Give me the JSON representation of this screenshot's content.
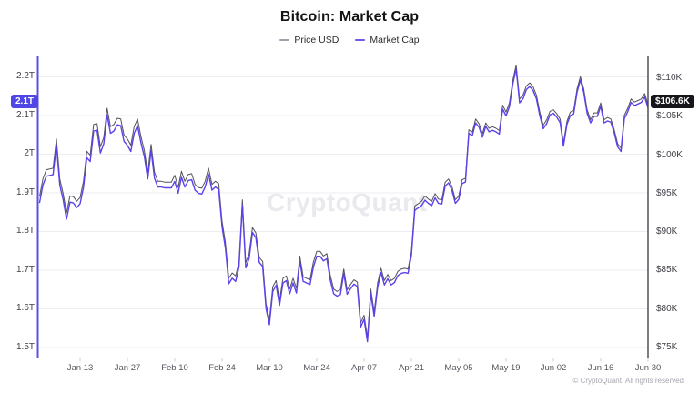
{
  "title": "Bitcoin: Market Cap",
  "legend": {
    "items": [
      {
        "label": "Price USD",
        "color": "#9ca3af"
      },
      {
        "label": "Market Cap",
        "color": "#6d5be8"
      }
    ]
  },
  "watermark": "CryptoQuant",
  "footer": "© CryptoQuant. All rights reserved",
  "axes": {
    "left": {
      "tick_labels": [
        "2.2T",
        "2.1T",
        "2T",
        "1.9T",
        "1.8T",
        "1.7T",
        "1.6T",
        "1.5T"
      ],
      "current_value_badge": "2.1T",
      "badge_color": "#4f46e5"
    },
    "right": {
      "tick_labels": [
        "$110K",
        "$105K",
        "$100K",
        "$95K",
        "$90K",
        "$85K",
        "$80K",
        "$75K"
      ],
      "current_value_badge": "$106.6K",
      "badge_color": "#17171b"
    },
    "bottom": {
      "tick_labels": [
        "Jan 13",
        "Jan 27",
        "Feb 10",
        "Feb 24",
        "Mar 10",
        "Mar 24",
        "Apr 07",
        "Apr 21",
        "May 05",
        "May 19",
        "Jun 02",
        "Jun 16",
        "Jun 30"
      ]
    }
  },
  "chart_data": {
    "type": "line",
    "title": "Bitcoin: Market Cap",
    "x": {
      "start_label": "Jan 1",
      "interval_days": 1,
      "points": 181
    },
    "x_tick_labels": [
      "Jan 13",
      "Jan 27",
      "Feb 10",
      "Feb 24",
      "Mar 10",
      "Mar 24",
      "Apr 07",
      "Apr 21",
      "May 05",
      "May 19",
      "Jun 02",
      "Jun 16",
      "Jun 30"
    ],
    "left_axis": {
      "ticks": [
        2.2,
        2.1,
        2.0,
        1.9,
        1.8,
        1.7,
        1.6,
        1.5
      ],
      "unit": "T USD",
      "range": [
        1.45,
        2.25
      ]
    },
    "right_axis": {
      "ticks": [
        110,
        105,
        100,
        95,
        90,
        85,
        80,
        75
      ],
      "unit": "K USD",
      "range": [
        74.5,
        110.5
      ]
    },
    "grid": "horizontal",
    "legend_position": "top-center",
    "latest": {
      "market_cap": "2.1T",
      "price_usd": "$106.6K"
    },
    "series": [
      {
        "name": "Price USD",
        "axis": "right",
        "unit": "K USD",
        "color": "#52525b",
        "values": [
          94.6,
          96.9,
          98.1,
          98.2,
          98.3,
          102.1,
          96.9,
          95.0,
          92.5,
          94.7,
          94.6,
          94.0,
          94.5,
          96.6,
          100.5,
          100.0,
          104.0,
          104.1,
          101.1,
          102.3,
          106.1,
          103.7,
          104.0,
          104.8,
          104.7,
          102.6,
          102.1,
          101.3,
          103.7,
          104.7,
          102.4,
          100.6,
          97.7,
          101.4,
          97.8,
          96.6,
          96.6,
          96.5,
          96.5,
          96.5,
          97.4,
          95.8,
          97.9,
          96.6,
          97.5,
          97.6,
          96.2,
          95.8,
          95.7,
          96.6,
          98.3,
          96.2,
          96.6,
          96.3,
          91.4,
          88.6,
          84.0,
          84.7,
          84.3,
          86.1,
          94.2,
          86.0,
          87.2,
          90.6,
          89.9,
          86.7,
          86.2,
          80.7,
          78.6,
          82.9,
          83.7,
          81.1,
          84.0,
          84.3,
          82.6,
          84.0,
          82.7,
          86.9,
          84.2,
          84.0,
          83.8,
          86.1,
          87.5,
          87.5,
          86.9,
          87.2,
          84.4,
          82.6,
          82.3,
          82.5,
          85.2,
          82.5,
          83.2,
          83.8,
          83.5,
          78.2,
          79.2,
          76.3,
          82.6,
          79.6,
          83.4,
          85.3,
          83.7,
          84.5,
          83.7,
          84.0,
          84.9,
          85.2,
          85.3,
          85.2,
          87.5,
          93.4,
          93.7,
          94.0,
          94.7,
          94.3,
          94.0,
          95.0,
          94.3,
          94.2,
          96.5,
          96.9,
          95.9,
          94.2,
          94.7,
          96.8,
          97.0,
          103.3,
          103.0,
          104.7,
          104.1,
          102.8,
          104.2,
          103.5,
          103.7,
          103.5,
          103.2,
          106.5,
          105.6,
          106.8,
          109.7,
          111.7,
          107.3,
          107.8,
          109.0,
          109.4,
          108.9,
          107.8,
          105.6,
          103.9,
          104.6,
          105.7,
          105.9,
          105.4,
          104.7,
          101.6,
          104.4,
          105.6,
          105.8,
          108.6,
          110.2,
          108.6,
          105.9,
          104.6,
          105.5,
          105.5,
          106.8,
          104.6,
          104.9,
          104.7,
          103.3,
          101.5,
          100.9,
          105.2,
          106.1,
          107.3,
          106.9,
          107.1,
          107.3,
          108.0,
          106.6
        ]
      },
      {
        "name": "Market Cap",
        "axis": "left",
        "unit": "T USD",
        "color": "#5b43ea",
        "values": [
          1.874,
          1.92,
          1.943,
          1.945,
          1.947,
          2.023,
          1.92,
          1.882,
          1.832,
          1.876,
          1.874,
          1.862,
          1.872,
          1.914,
          1.991,
          1.981,
          2.06,
          2.062,
          2.003,
          2.027,
          2.102,
          2.054,
          2.06,
          2.076,
          2.074,
          2.033,
          2.023,
          2.007,
          2.054,
          2.074,
          2.029,
          1.994,
          1.936,
          2.01,
          1.938,
          1.915,
          1.915,
          1.913,
          1.913,
          1.913,
          1.93,
          1.899,
          1.94,
          1.915,
          1.932,
          1.934,
          1.907,
          1.899,
          1.897,
          1.915,
          1.948,
          1.907,
          1.915,
          1.909,
          1.812,
          1.756,
          1.665,
          1.679,
          1.671,
          1.708,
          1.869,
          1.706,
          1.73,
          1.798,
          1.784,
          1.72,
          1.71,
          1.601,
          1.559,
          1.645,
          1.661,
          1.609,
          1.667,
          1.673,
          1.639,
          1.667,
          1.641,
          1.724,
          1.671,
          1.667,
          1.663,
          1.708,
          1.736,
          1.736,
          1.724,
          1.73,
          1.674,
          1.639,
          1.633,
          1.637,
          1.692,
          1.638,
          1.652,
          1.664,
          1.658,
          1.553,
          1.573,
          1.515,
          1.64,
          1.581,
          1.656,
          1.694,
          1.662,
          1.678,
          1.662,
          1.668,
          1.686,
          1.692,
          1.694,
          1.692,
          1.738,
          1.855,
          1.861,
          1.867,
          1.881,
          1.873,
          1.867,
          1.887,
          1.873,
          1.871,
          1.918,
          1.926,
          1.906,
          1.873,
          1.883,
          1.924,
          1.928,
          2.054,
          2.048,
          2.081,
          2.07,
          2.044,
          2.072,
          2.058,
          2.062,
          2.058,
          2.052,
          2.117,
          2.099,
          2.123,
          2.181,
          2.221,
          2.133,
          2.143,
          2.167,
          2.175,
          2.165,
          2.143,
          2.099,
          2.066,
          2.079,
          2.102,
          2.106,
          2.096,
          2.082,
          2.021,
          2.077,
          2.1,
          2.104,
          2.16,
          2.192,
          2.16,
          2.106,
          2.081,
          2.098,
          2.098,
          2.124,
          2.081,
          2.086,
          2.083,
          2.055,
          2.019,
          2.007,
          2.092,
          2.11,
          2.134,
          2.126,
          2.13,
          2.134,
          2.148,
          2.12
        ]
      }
    ]
  }
}
